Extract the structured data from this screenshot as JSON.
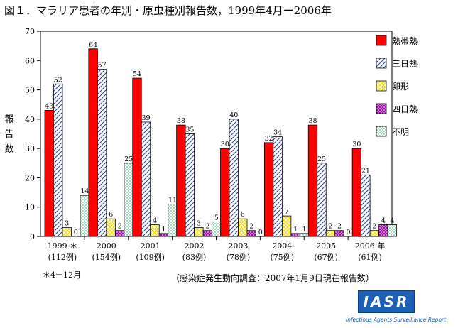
{
  "title": "図１．マラリア患者の年別・原虫種別報告数，1999年4月ー2006年",
  "ylabel_chars": [
    "報",
    "告",
    "数"
  ],
  "note": "＊4ー12月",
  "source": "（感染症発生動向調査：2007年1月9日現在報告数）",
  "logo": {
    "text": "IASR",
    "subtitle": "Infectious Agents Surveillance Report"
  },
  "chart_data": {
    "type": "bar",
    "title": "",
    "xlabel": "",
    "ylabel": "報告数",
    "ylim": [
      0,
      70
    ],
    "yticks": [
      0,
      10,
      20,
      30,
      40,
      50,
      60,
      70
    ],
    "grid": false,
    "legend_position": "right",
    "categories": [
      "1999 ＊",
      "2000",
      "2001",
      "2002",
      "2003",
      "2004",
      "2005",
      "2006 年"
    ],
    "category_sublabels": [
      "(112例)",
      "(154例)",
      "(109例)",
      "(83例)",
      "(78例)",
      "(75例)",
      "(67例)",
      "(61例)"
    ],
    "series": [
      {
        "name": "熱帯熱",
        "values": [
          43,
          64,
          54,
          38,
          30,
          32,
          38,
          30
        ],
        "color": "#ff0000",
        "pattern": "solid"
      },
      {
        "name": "三日熱",
        "values": [
          52,
          57,
          39,
          35,
          40,
          34,
          25,
          21
        ],
        "color": "#2040c0",
        "pattern": "diagonal"
      },
      {
        "name": "卵形",
        "values": [
          3,
          6,
          4,
          3,
          6,
          7,
          2,
          2
        ],
        "color": "#f0e000",
        "pattern": "crosshatch"
      },
      {
        "name": "四日熱",
        "values": [
          0,
          2,
          1,
          2,
          2,
          1,
          2,
          4
        ],
        "color": "#9020a0",
        "pattern": "check"
      },
      {
        "name": "不明",
        "values": [
          14,
          25,
          11,
          5,
          0,
          1,
          0,
          4
        ],
        "color": "#20a060",
        "pattern": "dots"
      }
    ]
  }
}
